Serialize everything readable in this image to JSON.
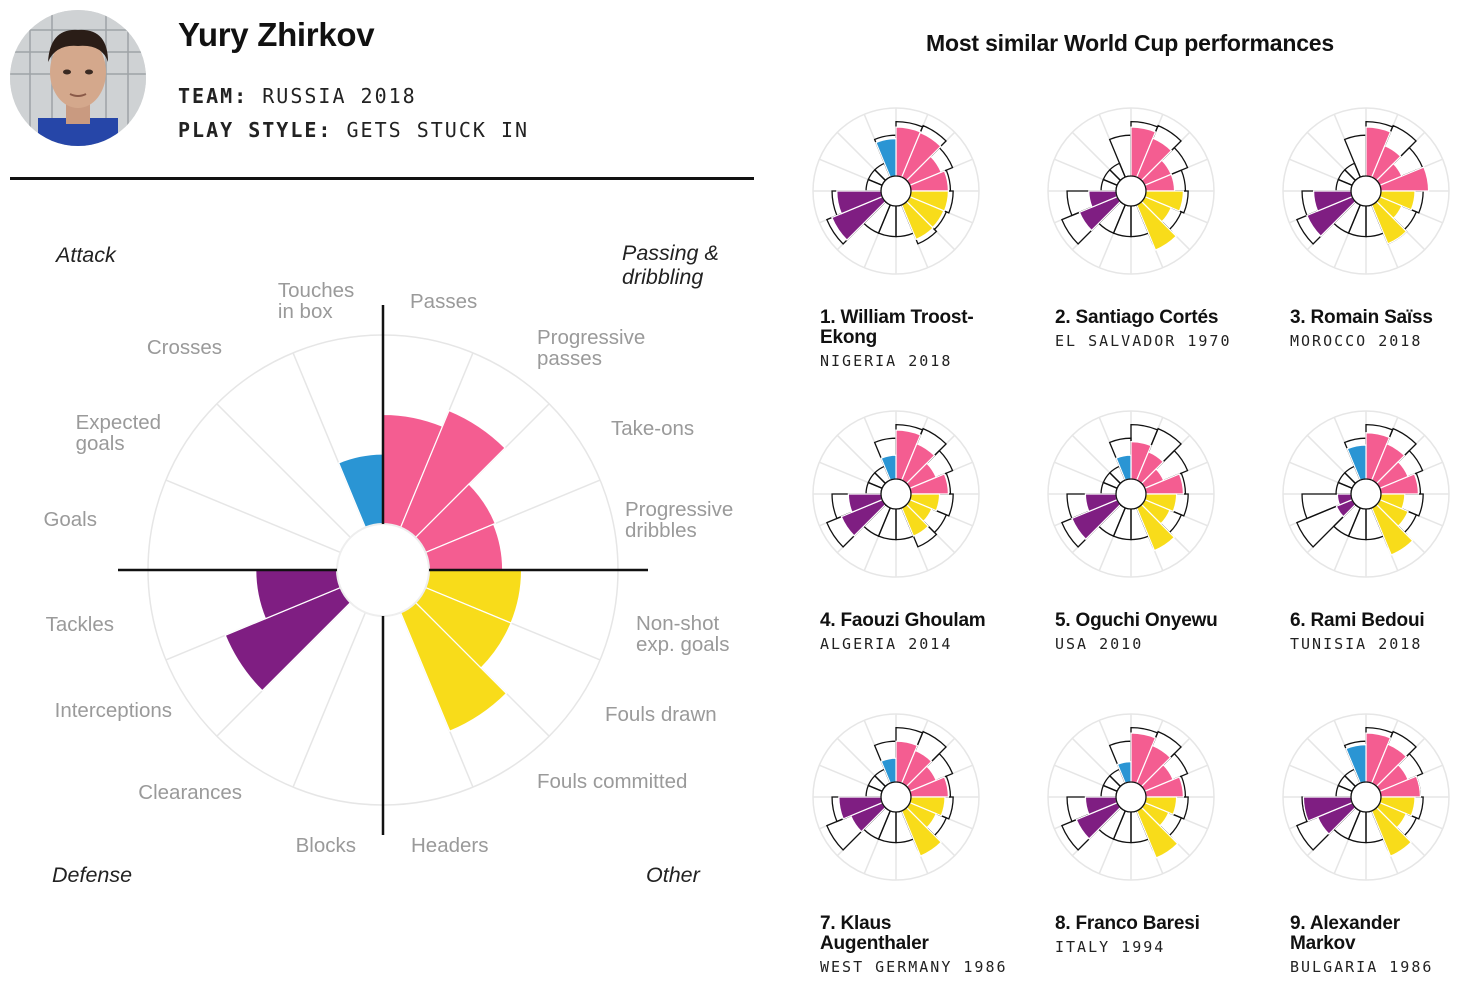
{
  "player": {
    "name": "Yury Zhirkov",
    "team_label": "TEAM:",
    "team_value": "RUSSIA 2018",
    "style_label": "PLAY STYLE:",
    "style_value": "GETS STUCK IN"
  },
  "colors": {
    "attack": "#2a95d4",
    "passing": "#f45d91",
    "other": "#f8dc1a",
    "defense": "#7f1e82"
  },
  "chart_data": {
    "type": "polar-bar",
    "quadrants": [
      "Attack",
      "Passing &\ndribbling",
      "Other",
      "Defense"
    ],
    "categories": [
      "Passes",
      "Progressive\npasses",
      "Take-ons",
      "Progressive\ndribbles",
      "Non-shot\nexp. goals",
      "Fouls drawn",
      "Fouls committed",
      "Headers",
      "Blocks",
      "Clearances",
      "Interceptions",
      "Tackles",
      "Goals",
      "Expected\ngoals",
      "Crosses",
      "Touches\nin box"
    ],
    "groups": [
      "passing",
      "passing",
      "passing",
      "passing",
      "other",
      "other",
      "other",
      "other",
      "defense",
      "defense",
      "defense",
      "defense",
      "attack",
      "attack",
      "attack",
      "attack"
    ],
    "values": [
      0.58,
      0.67,
      0.4,
      0.39,
      0.49,
      0.49,
      0.68,
      0.0,
      0.0,
      0.0,
      0.66,
      0.43,
      0.0,
      0.0,
      0.0,
      0.37
    ],
    "range": [
      0,
      1
    ]
  },
  "similar": {
    "title": "Most similar World Cup performances",
    "players": [
      {
        "rank_name": "1. William Troost-\nEkong",
        "team": "NIGERIA 2018",
        "values": [
          0.72,
          0.71,
          0.5,
          0.55,
          0.55,
          0.54,
          0.55,
          0.0,
          0.0,
          0.0,
          0.8,
          0.65,
          0.0,
          0.0,
          0.0,
          0.55
        ],
        "ref": [
          0.8,
          0.82,
          0.68,
          0.58,
          0.62,
          0.58,
          0.62,
          0.45,
          0.45,
          0.45,
          0.88,
          0.72,
          0.22,
          0.22,
          0.22,
          0.6
        ]
      },
      {
        "rank_name": "2. Santiago Cortés",
        "team": "EL SALVADOR 1970",
        "values": [
          0.72,
          0.62,
          0.42,
          0.42,
          0.55,
          0.42,
          0.72,
          0.0,
          0.0,
          0.0,
          0.6,
          0.4,
          0.0,
          0.0,
          0.0,
          0.0
        ],
        "ref": [
          0.8,
          0.82,
          0.68,
          0.58,
          0.62,
          0.58,
          0.62,
          0.45,
          0.45,
          0.45,
          0.88,
          0.72,
          0.22,
          0.22,
          0.22,
          0.6
        ]
      },
      {
        "rank_name": "3. Romain Saïss",
        "team": "MOROCCO 2018",
        "values": [
          0.72,
          0.5,
          0.35,
          0.7,
          0.5,
          0.35,
          0.62,
          0.0,
          0.0,
          0.0,
          0.72,
          0.55,
          0.0,
          0.0,
          0.0,
          0.0
        ],
        "ref": [
          0.8,
          0.82,
          0.68,
          0.58,
          0.62,
          0.58,
          0.62,
          0.45,
          0.45,
          0.45,
          0.88,
          0.72,
          0.22,
          0.22,
          0.22,
          0.6
        ]
      },
      {
        "rank_name": "4. Faouzi Ghoulam",
        "team": "ALGERIA 2014",
        "values": [
          0.72,
          0.58,
          0.42,
          0.55,
          0.42,
          0.35,
          0.45,
          0.0,
          0.0,
          0.0,
          0.65,
          0.48,
          0.0,
          0.0,
          0.0,
          0.35
        ],
        "ref": [
          0.8,
          0.82,
          0.68,
          0.58,
          0.62,
          0.58,
          0.62,
          0.45,
          0.45,
          0.45,
          0.88,
          0.72,
          0.22,
          0.22,
          0.22,
          0.6
        ]
      },
      {
        "rank_name": "5. Oguchi Onyewu",
        "team": "USA 2010",
        "values": [
          0.55,
          0.45,
          0.3,
          0.55,
          0.45,
          0.4,
          0.68,
          0.0,
          0.0,
          0.0,
          0.72,
          0.45,
          0.0,
          0.0,
          0.0,
          0.35
        ],
        "ref": [
          0.8,
          0.82,
          0.68,
          0.58,
          0.62,
          0.58,
          0.62,
          0.45,
          0.45,
          0.45,
          0.88,
          0.72,
          0.22,
          0.22,
          0.22,
          0.6
        ]
      },
      {
        "rank_name": "6. Rami Bedoui",
        "team": "TUNISIA 2018",
        "values": [
          0.68,
          0.58,
          0.45,
          0.55,
          0.35,
          0.45,
          0.75,
          0.0,
          0.0,
          0.0,
          0.25,
          0.2,
          0.0,
          0.0,
          0.0,
          0.5
        ],
        "ref": [
          0.8,
          0.82,
          0.68,
          0.58,
          0.62,
          0.58,
          0.62,
          0.45,
          0.45,
          0.45,
          0.88,
          0.72,
          0.22,
          0.22,
          0.22,
          0.6
        ]
      },
      {
        "rank_name": "7. Klaus\nAugenthaler",
        "team": "WEST GERMANY 1986",
        "values": [
          0.6,
          0.52,
          0.42,
          0.55,
          0.5,
          0.42,
          0.72,
          0.0,
          0.0,
          0.0,
          0.5,
          0.62,
          0.0,
          0.0,
          0.0,
          0.35
        ],
        "ref": [
          0.8,
          0.82,
          0.68,
          0.58,
          0.62,
          0.58,
          0.62,
          0.45,
          0.45,
          0.45,
          0.88,
          0.72,
          0.22,
          0.22,
          0.22,
          0.6
        ]
      },
      {
        "rank_name": "8. Franco Baresi",
        "team": "ITALY 1994",
        "values": [
          0.72,
          0.6,
          0.45,
          0.55,
          0.45,
          0.38,
          0.75,
          0.0,
          0.0,
          0.0,
          0.65,
          0.45,
          0.0,
          0.0,
          0.0,
          0.3
        ],
        "ref": [
          0.8,
          0.82,
          0.68,
          0.58,
          0.62,
          0.58,
          0.62,
          0.45,
          0.45,
          0.45,
          0.88,
          0.72,
          0.22,
          0.22,
          0.22,
          0.6
        ]
      },
      {
        "rank_name": "9. Alexander\nMarkov",
        "team": "BULGARIA 1986",
        "values": [
          0.72,
          0.62,
          0.45,
          0.58,
          0.5,
          0.42,
          0.72,
          0.0,
          0.0,
          0.0,
          0.55,
          0.7,
          0.0,
          0.0,
          0.0,
          0.55
        ],
        "ref": [
          0.8,
          0.82,
          0.68,
          0.58,
          0.62,
          0.58,
          0.62,
          0.45,
          0.45,
          0.45,
          0.88,
          0.72,
          0.22,
          0.22,
          0.22,
          0.6
        ]
      }
    ]
  }
}
